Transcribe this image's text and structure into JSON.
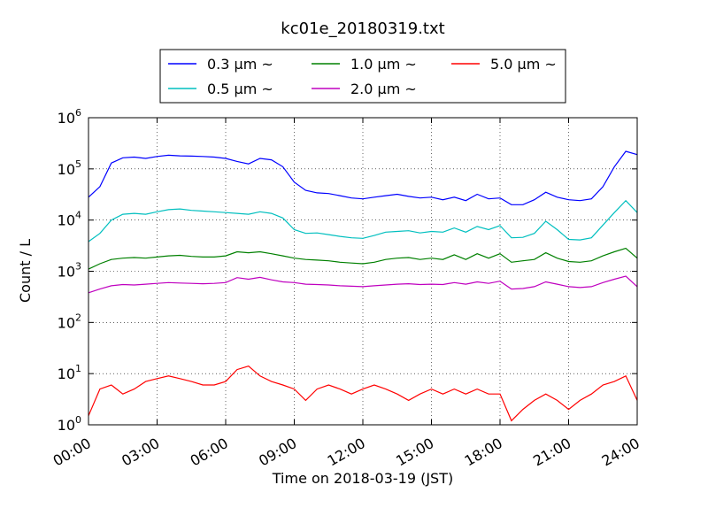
{
  "chart_data": {
    "type": "line",
    "title": "kc01e_20180319.txt",
    "xlabel": "Time on 2018-03-19 (JST)",
    "ylabel": "Count / L",
    "y_scale": "log",
    "ylim_exponents": [
      0,
      6
    ],
    "y_ticks": [
      {
        "base": "10",
        "exp": "0",
        "value": 1
      },
      {
        "base": "10",
        "exp": "1",
        "value": 10
      },
      {
        "base": "10",
        "exp": "2",
        "value": 100
      },
      {
        "base": "10",
        "exp": "3",
        "value": 1000
      },
      {
        "base": "10",
        "exp": "4",
        "value": 10000
      },
      {
        "base": "10",
        "exp": "5",
        "value": 100000
      },
      {
        "base": "10",
        "exp": "6",
        "value": 1000000
      }
    ],
    "xlim_hours": [
      0,
      24
    ],
    "x_ticks": [
      {
        "label": "00:00",
        "hour": 0
      },
      {
        "label": "03:00",
        "hour": 3
      },
      {
        "label": "06:00",
        "hour": 6
      },
      {
        "label": "09:00",
        "hour": 9
      },
      {
        "label": "12:00",
        "hour": 12
      },
      {
        "label": "15:00",
        "hour": 15
      },
      {
        "label": "18:00",
        "hour": 18
      },
      {
        "label": "21:00",
        "hour": 21
      },
      {
        "label": "24:00",
        "hour": 24
      }
    ],
    "grid": true,
    "legend_position": "top-center",
    "x_hours": [
      0,
      0.5,
      1,
      1.5,
      2,
      2.5,
      3,
      3.5,
      4,
      4.5,
      5,
      5.5,
      6,
      6.5,
      7,
      7.5,
      8,
      8.5,
      9,
      9.5,
      10,
      10.5,
      11,
      11.5,
      12,
      12.5,
      13,
      13.5,
      14,
      14.5,
      15,
      15.5,
      16,
      16.5,
      17,
      17.5,
      18,
      18.5,
      19,
      19.5,
      20,
      20.5,
      21,
      21.5,
      22,
      22.5,
      23,
      23.5,
      24
    ],
    "series": [
      {
        "name": "0.3 μm ~",
        "color": "#0000ff",
        "values": [
          28000,
          45000,
          130000,
          165000,
          170000,
          160000,
          175000,
          185000,
          180000,
          178000,
          175000,
          170000,
          160000,
          140000,
          125000,
          160000,
          150000,
          110000,
          55000,
          38000,
          34000,
          33000,
          30000,
          27000,
          26000,
          28000,
          30000,
          32000,
          29000,
          27000,
          28000,
          25000,
          28000,
          24000,
          32000,
          26000,
          27000,
          20000,
          20000,
          25000,
          35000,
          28000,
          25000,
          24000,
          26000,
          45000,
          110000,
          220000,
          190000
        ]
      },
      {
        "name": "0.5 μm ~",
        "color": "#00bfbf",
        "values": [
          3800,
          5500,
          10000,
          13000,
          13500,
          13000,
          14500,
          16000,
          16500,
          15500,
          15000,
          14500,
          14000,
          13500,
          13000,
          14500,
          13500,
          11000,
          6500,
          5500,
          5600,
          5200,
          4800,
          4500,
          4400,
          5000,
          5800,
          6000,
          6200,
          5600,
          6000,
          5800,
          7000,
          5800,
          7500,
          6500,
          7800,
          4500,
          4600,
          5500,
          9500,
          6500,
          4200,
          4100,
          4500,
          8000,
          14000,
          24000,
          14000
        ]
      },
      {
        "name": "1.0 μm ~",
        "color": "#008000",
        "values": [
          1100,
          1400,
          1700,
          1800,
          1850,
          1800,
          1900,
          2000,
          2050,
          1950,
          1900,
          1900,
          2000,
          2400,
          2300,
          2400,
          2200,
          2000,
          1800,
          1700,
          1650,
          1600,
          1500,
          1450,
          1400,
          1500,
          1700,
          1800,
          1850,
          1700,
          1800,
          1700,
          2100,
          1700,
          2200,
          1800,
          2200,
          1500,
          1600,
          1700,
          2300,
          1800,
          1550,
          1500,
          1600,
          2000,
          2400,
          2800,
          1800
        ]
      },
      {
        "name": "2.0 μm ~",
        "color": "#bf00bf",
        "values": [
          380,
          450,
          520,
          550,
          540,
          560,
          580,
          600,
          590,
          580,
          570,
          580,
          600,
          750,
          700,
          760,
          680,
          620,
          600,
          560,
          550,
          540,
          520,
          510,
          500,
          520,
          540,
          560,
          570,
          550,
          560,
          550,
          600,
          560,
          620,
          580,
          640,
          450,
          460,
          500,
          620,
          560,
          500,
          480,
          500,
          600,
          700,
          800,
          500
        ]
      },
      {
        "name": "5.0 μm ~",
        "color": "#ff0000",
        "values": [
          1.5,
          5,
          6,
          4,
          5,
          7,
          8,
          9,
          8,
          7,
          6,
          6,
          7,
          12,
          14,
          9,
          7,
          6,
          5,
          3,
          5,
          6,
          5,
          4,
          5,
          6,
          5,
          4,
          3,
          4,
          5,
          4,
          5,
          4,
          5,
          4,
          4,
          1.2,
          2,
          3,
          4,
          3,
          2,
          3,
          4,
          6,
          7,
          9,
          3
        ]
      }
    ]
  }
}
